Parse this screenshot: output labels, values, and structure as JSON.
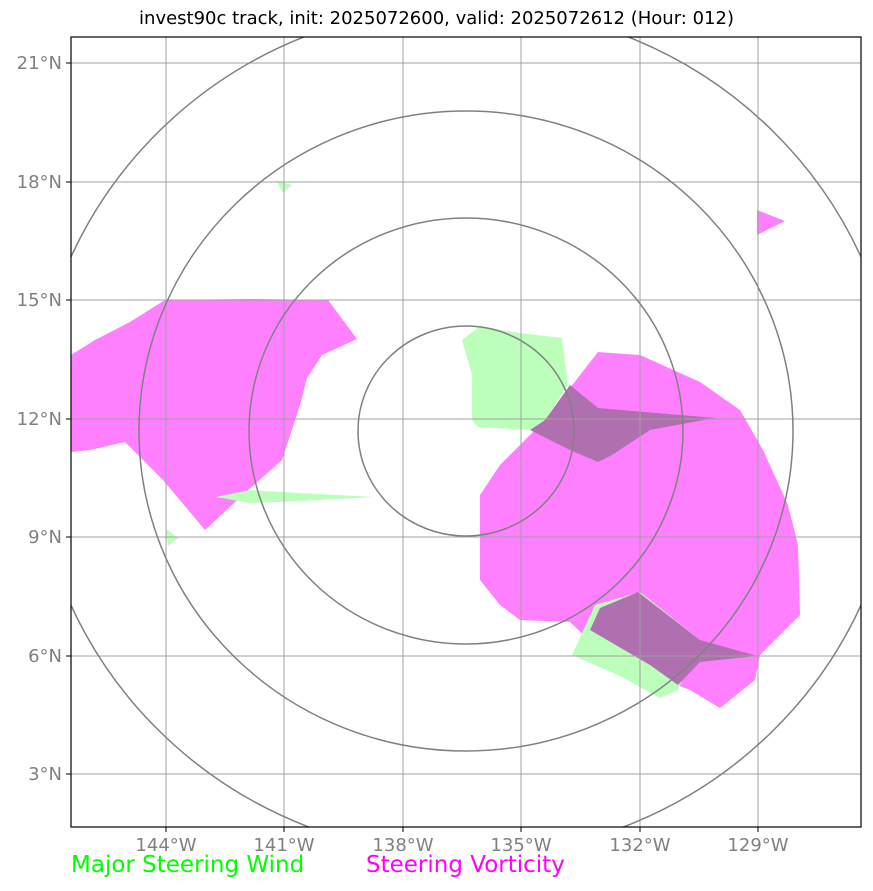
{
  "title": "invest90c track, init: 2025072600, valid: 2025072612 (Hour: 012)",
  "lat_labels": [
    "3°N",
    "6°N",
    "9°N",
    "12°N",
    "15°N",
    "18°N",
    "21°N"
  ],
  "lon_labels": [
    "144°W",
    "141°W",
    "138°W",
    "135°W",
    "132°W",
    "129°W"
  ],
  "legend": {
    "wind_label": "Major Steering Wind",
    "vorticity_label": "Steering Vorticity"
  },
  "colors": {
    "wind": "#00ff00",
    "wind_fill": "#bbffbb",
    "vorticity": "#ff00ff",
    "vorticity_fill": "#ff80ff",
    "overlap": "#b070b0",
    "grid": "#a0a0a0",
    "range_rings": "#808080"
  },
  "extent": {
    "lon_min": -146.4,
    "lon_max": -126.4,
    "lat_min": 1.3,
    "lat_max": 21.6
  },
  "center": {
    "lon": -136.0,
    "lat": 12.0
  },
  "range_rings_deg": [
    2,
    5,
    8,
    10.5
  ]
}
